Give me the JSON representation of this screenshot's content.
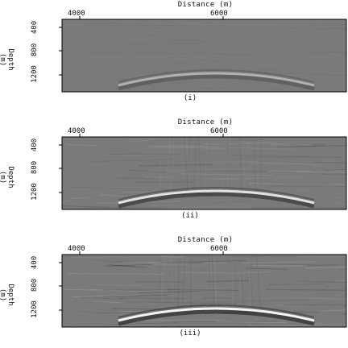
{
  "panels": [
    {
      "caption": "(i)",
      "x_axis_title": "Distance (m)",
      "x_ticks": [
        "4000",
        "6000"
      ],
      "y_axis_title": "Depth (m)",
      "y_ticks": [
        "400",
        "800",
        "1200"
      ],
      "reflector_strength": 0.45,
      "noise_level": 0.05
    },
    {
      "caption": "(ii)",
      "x_axis_title": "Distance (m)",
      "x_ticks": [
        "4000",
        "6000"
      ],
      "y_axis_title": "Depth (m)",
      "y_ticks": [
        "400",
        "800",
        "1200"
      ],
      "reflector_strength": 0.85,
      "noise_level": 0.18
    },
    {
      "caption": "(iii)",
      "x_axis_title": "Distance (m)",
      "x_ticks": [
        "4000",
        "6000"
      ],
      "y_axis_title": "Depth (m)",
      "y_ticks": [
        "400",
        "800",
        "1200"
      ],
      "reflector_strength": 1.0,
      "noise_level": 0.24
    }
  ],
  "colors": {
    "background_gray": "#7a7a7a",
    "frame": "#000000"
  }
}
